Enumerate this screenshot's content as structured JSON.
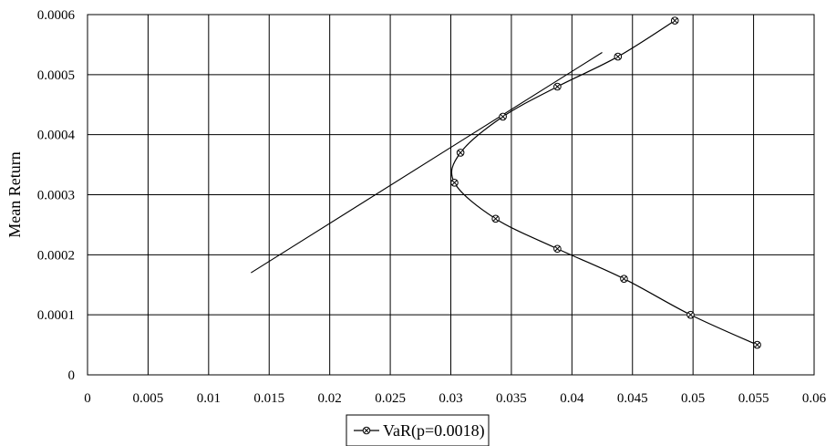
{
  "chart_data": {
    "type": "line",
    "title": "",
    "xlabel": "",
    "ylabel": "Mean Return",
    "xlim": [
      0,
      0.06
    ],
    "ylim": [
      0,
      0.0006
    ],
    "x_ticks": [
      "0",
      "0.005",
      "0.01",
      "0.015",
      "0.02",
      "0.025",
      "0.03",
      "0.035",
      "0.04",
      "0.045",
      "0.05",
      "0.055",
      "0.06"
    ],
    "y_ticks": [
      "0",
      "0.0001",
      "0.0002",
      "0.0003",
      "0.0004",
      "0.0005",
      "0.0006"
    ],
    "grid": true,
    "legend": {
      "position": "bottom-center",
      "entries": [
        "VaR(p=0.0018)"
      ]
    },
    "series": [
      {
        "name": "VaR(p=0.0018)",
        "marker": "circle-x",
        "color": "#000000",
        "points": [
          {
            "x": 0.0553,
            "y": 5e-05
          },
          {
            "x": 0.0498,
            "y": 0.0001
          },
          {
            "x": 0.0443,
            "y": 0.00016
          },
          {
            "x": 0.0388,
            "y": 0.00021
          },
          {
            "x": 0.0337,
            "y": 0.00026
          },
          {
            "x": 0.0303,
            "y": 0.00032
          },
          {
            "x": 0.0308,
            "y": 0.00037
          },
          {
            "x": 0.0343,
            "y": 0.00043
          },
          {
            "x": 0.0388,
            "y": 0.00048
          },
          {
            "x": 0.0438,
            "y": 0.00053
          },
          {
            "x": 0.0485,
            "y": 0.00059
          }
        ]
      }
    ],
    "tangent_line": {
      "color": "#000000",
      "points": [
        {
          "x": 0.0135,
          "y": 0.00017
        },
        {
          "x": 0.0425,
          "y": 0.000537
        }
      ]
    }
  }
}
